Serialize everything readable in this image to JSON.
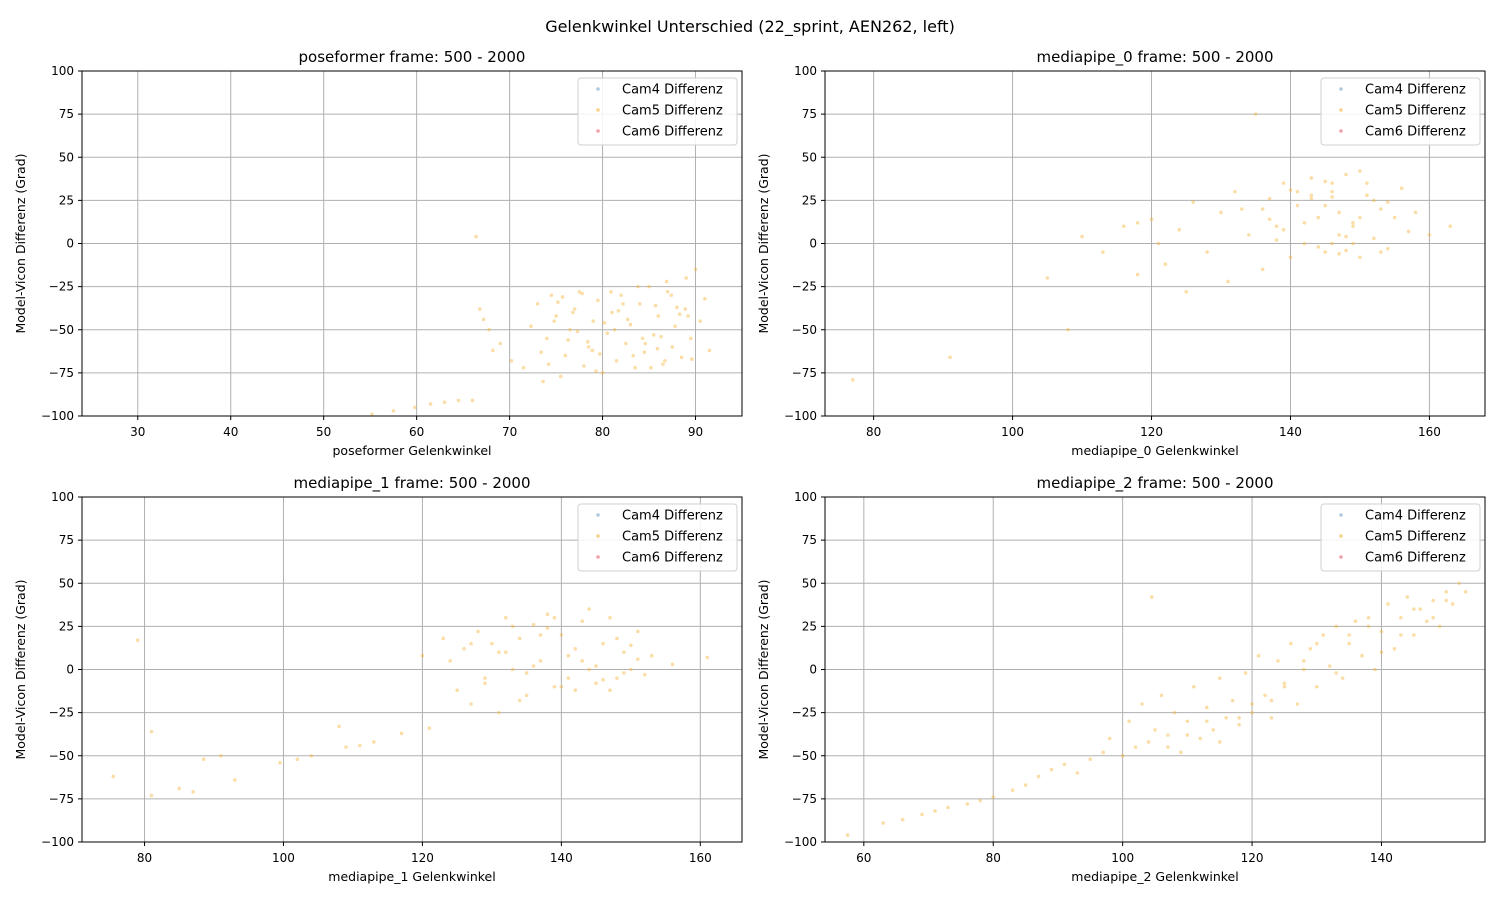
{
  "figure": {
    "suptitle": "Gelenkwinkel Unterschied (22_sprint, AEN262, left)"
  },
  "legend_entries": [
    {
      "label": "Cam4 Differenz",
      "color": "#7aa6c8"
    },
    {
      "label": "Cam5 Differenz",
      "color": "#f5b43c"
    },
    {
      "label": "Cam6 Differenz",
      "color": "#e8646e"
    }
  ],
  "chart_data": [
    {
      "type": "scatter",
      "title": "poseformer frame: 500 - 2000",
      "xlabel": "poseformer Gelenkwinkel",
      "ylabel": "Model-Vicon Differenz (Grad)",
      "xlim": [
        24,
        95
      ],
      "ylim": [
        -100,
        100
      ],
      "xticks": [
        30,
        40,
        50,
        60,
        70,
        80,
        90
      ],
      "yticks": [
        -100,
        -75,
        -50,
        -25,
        0,
        25,
        50,
        75,
        100
      ],
      "grid": true,
      "legend_position": "top-right",
      "series": [
        {
          "name": "Cam4 Differenz",
          "color": "#7aa6c8",
          "x": [],
          "y": []
        },
        {
          "name": "Cam5 Differenz",
          "color": "#f5b43c",
          "x": [
            55.2,
            57.5,
            59.8,
            61.5,
            63.0,
            64.5,
            66.0,
            66.4,
            66.8,
            67.2,
            67.8,
            68.2,
            69.0,
            70.2,
            71.5,
            72.3,
            73.0,
            73.6,
            74.0,
            74.5,
            75.0,
            75.5,
            76.0,
            76.5,
            77.0,
            77.5,
            78.0,
            78.5,
            79.0,
            79.5,
            80.0,
            80.5,
            81.0,
            81.5,
            82.0,
            82.5,
            83.0,
            83.5,
            84.0,
            84.5,
            85.0,
            85.5,
            86.0,
            86.5,
            87.0,
            87.5,
            88.0,
            88.5,
            89.0,
            89.5,
            90.0,
            90.5,
            91.0,
            91.5,
            74.2,
            76.8,
            78.4,
            80.9,
            83.3,
            85.7,
            87.8,
            75.7,
            79.3,
            82.7,
            86.3,
            88.9,
            73.4,
            77.3,
            81.7,
            84.6,
            86.9,
            89.6,
            74.8,
            78.9,
            82.2,
            85.2,
            87.4,
            76.3,
            80.2,
            83.8,
            86.7,
            89.2,
            75.2,
            79.7,
            84.3,
            88.3,
            77.8,
            81.3,
            85.9
          ],
          "y": [
            -99,
            -97,
            -95,
            -93,
            -92,
            -91,
            -91,
            4,
            -38,
            -44,
            -50,
            -62,
            -58,
            -68,
            -72,
            -48,
            -35,
            -80,
            -55,
            -30,
            -42,
            -77,
            -65,
            -50,
            -38,
            -28,
            -71,
            -60,
            -45,
            -33,
            -75,
            -52,
            -40,
            -68,
            -30,
            -58,
            -47,
            -72,
            -35,
            -63,
            -25,
            -53,
            -42,
            -70,
            -28,
            -60,
            -37,
            -66,
            -20,
            -55,
            -15,
            -45,
            -32,
            -62,
            -70,
            -40,
            -57,
            -28,
            -65,
            -36,
            -48,
            -31,
            -74,
            -44,
            -54,
            -38,
            -63,
            -51,
            -39,
            -58,
            -22,
            -67,
            -45,
            -62,
            -35,
            -72,
            -30,
            -56,
            -46,
            -25,
            -68,
            -42,
            -34,
            -64,
            -55,
            -41,
            -29,
            -50,
            -61
          ]
        },
        {
          "name": "Cam6 Differenz",
          "color": "#e8646e",
          "x": [],
          "y": []
        }
      ]
    },
    {
      "type": "scatter",
      "title": "mediapipe_0 frame: 500 - 2000",
      "xlabel": "mediapipe_0 Gelenkwinkel",
      "ylabel": "Model-Vicon Differenz (Grad)",
      "xlim": [
        73,
        168
      ],
      "ylim": [
        -100,
        100
      ],
      "xticks": [
        80,
        100,
        120,
        140,
        160
      ],
      "yticks": [
        -100,
        -75,
        -50,
        -25,
        0,
        25,
        50,
        75,
        100
      ],
      "grid": true,
      "legend_position": "top-right",
      "series": [
        {
          "name": "Cam4 Differenz",
          "color": "#7aa6c8",
          "x": [],
          "y": []
        },
        {
          "name": "Cam5 Differenz",
          "color": "#f5b43c",
          "x": [
            77,
            91,
            105,
            108,
            110,
            113,
            116,
            118,
            120,
            122,
            124,
            126,
            128,
            130,
            131,
            132,
            134,
            135,
            136,
            137,
            138,
            139,
            140,
            141,
            142,
            143,
            144,
            145,
            146,
            147,
            148,
            149,
            150,
            151,
            152,
            153,
            154,
            155,
            156,
            157,
            158,
            160,
            163,
            136,
            138,
            142,
            146,
            149,
            152,
            141,
            144,
            147,
            150,
            153,
            139,
            143,
            145,
            148,
            151,
            137,
            140,
            146,
            149,
            154,
            133,
            143,
            147,
            150,
            125,
            121,
            118,
            145,
            148,
            146
          ],
          "y": [
            -79,
            -66,
            -20,
            -50,
            4,
            -5,
            10,
            -18,
            14,
            -12,
            8,
            24,
            -5,
            18,
            -22,
            30,
            5,
            75,
            -15,
            26,
            10,
            35,
            -8,
            22,
            0,
            38,
            15,
            -5,
            30,
            5,
            40,
            12,
            -8,
            28,
            3,
            20,
            -3,
            15,
            32,
            7,
            18,
            5,
            10,
            20,
            2,
            12,
            35,
            0,
            25,
            30,
            -2,
            18,
            42,
            -5,
            8,
            28,
            22,
            -4,
            35,
            14,
            31,
            0,
            10,
            24,
            20,
            26,
            -6,
            15,
            -28,
            0,
            12,
            36,
            4,
            27
          ]
        },
        {
          "name": "Cam6 Differenz",
          "color": "#e8646e",
          "x": [],
          "y": []
        }
      ]
    },
    {
      "type": "scatter",
      "title": "mediapipe_1 frame: 500 - 2000",
      "xlabel": "mediapipe_1 Gelenkwinkel",
      "ylabel": "Model-Vicon Differenz (Grad)",
      "xlim": [
        71,
        166
      ],
      "ylim": [
        -100,
        100
      ],
      "xticks": [
        80,
        100,
        120,
        140,
        160
      ],
      "yticks": [
        -100,
        -75,
        -50,
        -25,
        0,
        25,
        50,
        75,
        100
      ],
      "grid": true,
      "legend_position": "top-right",
      "series": [
        {
          "name": "Cam4 Differenz",
          "color": "#7aa6c8",
          "x": [],
          "y": []
        },
        {
          "name": "Cam5 Differenz",
          "color": "#f5b43c",
          "x": [
            75.5,
            79,
            81,
            81,
            85,
            87,
            88.5,
            91,
            93,
            99.5,
            102,
            104,
            108,
            109,
            111,
            113,
            117,
            120,
            121,
            123,
            124,
            125,
            126,
            127,
            128,
            129,
            130,
            131,
            132,
            133,
            134,
            135,
            136,
            137,
            138,
            139,
            140,
            141,
            142,
            143,
            144,
            145,
            146,
            147,
            148,
            149,
            150,
            151,
            152,
            153,
            156,
            161,
            132,
            134,
            136,
            138,
            140,
            142,
            144,
            146,
            148,
            135,
            139,
            143,
            147,
            150,
            137,
            141,
            145,
            133,
            131,
            129,
            127,
            149,
            151
          ],
          "y": [
            -62,
            17,
            -36,
            -73,
            -69,
            -71,
            -52,
            -50,
            -64,
            -54,
            -52,
            -50,
            -33,
            -45,
            -44,
            -42,
            -37,
            8,
            -34,
            18,
            5,
            -12,
            12,
            -20,
            22,
            -5,
            15,
            -25,
            30,
            0,
            18,
            -15,
            26,
            5,
            32,
            -10,
            20,
            8,
            -12,
            28,
            0,
            -8,
            15,
            30,
            -5,
            10,
            0,
            22,
            -3,
            8,
            3,
            7,
            10,
            -18,
            2,
            24,
            -10,
            12,
            35,
            -6,
            18,
            -2,
            30,
            5,
            -12,
            14,
            20,
            -5,
            2,
            25,
            10,
            -8,
            15,
            -2,
            6
          ]
        },
        {
          "name": "Cam6 Differenz",
          "color": "#e8646e",
          "x": [],
          "y": []
        }
      ]
    },
    {
      "type": "scatter",
      "title": "mediapipe_2 frame: 500 - 2000",
      "xlabel": "mediapipe_2 Gelenkwinkel",
      "ylabel": "Model-Vicon Differenz (Grad)",
      "xlim": [
        54,
        156
      ],
      "ylim": [
        -100,
        100
      ],
      "xticks": [
        60,
        80,
        100,
        120,
        140
      ],
      "yticks": [
        -100,
        -75,
        -50,
        -25,
        0,
        25,
        50,
        75,
        100
      ],
      "grid": true,
      "legend_position": "top-right",
      "series": [
        {
          "name": "Cam4 Differenz",
          "color": "#7aa6c8",
          "x": [],
          "y": []
        },
        {
          "name": "Cam5 Differenz",
          "color": "#f5b43c",
          "x": [
            57.5,
            63,
            66,
            69,
            71,
            73,
            76,
            78,
            80,
            83,
            85,
            87,
            89,
            91,
            93,
            95,
            97,
            98,
            100,
            101,
            102,
            103,
            104,
            105,
            106,
            107,
            108,
            109,
            110,
            111,
            112,
            113,
            114,
            115,
            116,
            117,
            118,
            119,
            120,
            121,
            122,
            123,
            124,
            125,
            126,
            127,
            128,
            129,
            130,
            131,
            132,
            133,
            134,
            135,
            136,
            137,
            138,
            139,
            140,
            141,
            142,
            143,
            144,
            145,
            146,
            147,
            148,
            149,
            150,
            151,
            152,
            153,
            104.5,
            110,
            115,
            120,
            125,
            130,
            135,
            140,
            145,
            150,
            107,
            113,
            118,
            123,
            128,
            133,
            138,
            143,
            148
          ],
          "y": [
            -96,
            -89,
            -87,
            -84,
            -82,
            -80,
            -78,
            -76,
            -74,
            -70,
            -67,
            -62,
            -58,
            -55,
            -60,
            -52,
            -48,
            -40,
            -50,
            -30,
            -45,
            -20,
            -42,
            -35,
            -15,
            -38,
            -25,
            -48,
            -30,
            -10,
            -40,
            -22,
            -35,
            -5,
            -28,
            -18,
            -32,
            -2,
            -25,
            8,
            -15,
            -28,
            5,
            -8,
            15,
            -20,
            0,
            12,
            -10,
            20,
            2,
            25,
            -5,
            15,
            28,
            8,
            30,
            0,
            22,
            38,
            12,
            30,
            42,
            20,
            35,
            28,
            40,
            25,
            45,
            38,
            50,
            45,
            42,
            -38,
            -42,
            -20,
            -10,
            15,
            20,
            10,
            35,
            40,
            -45,
            -30,
            -28,
            -18,
            5,
            -2,
            25,
            20,
            30
          ]
        },
        {
          "name": "Cam6 Differenz",
          "color": "#e8646e",
          "x": [],
          "y": []
        }
      ]
    }
  ]
}
